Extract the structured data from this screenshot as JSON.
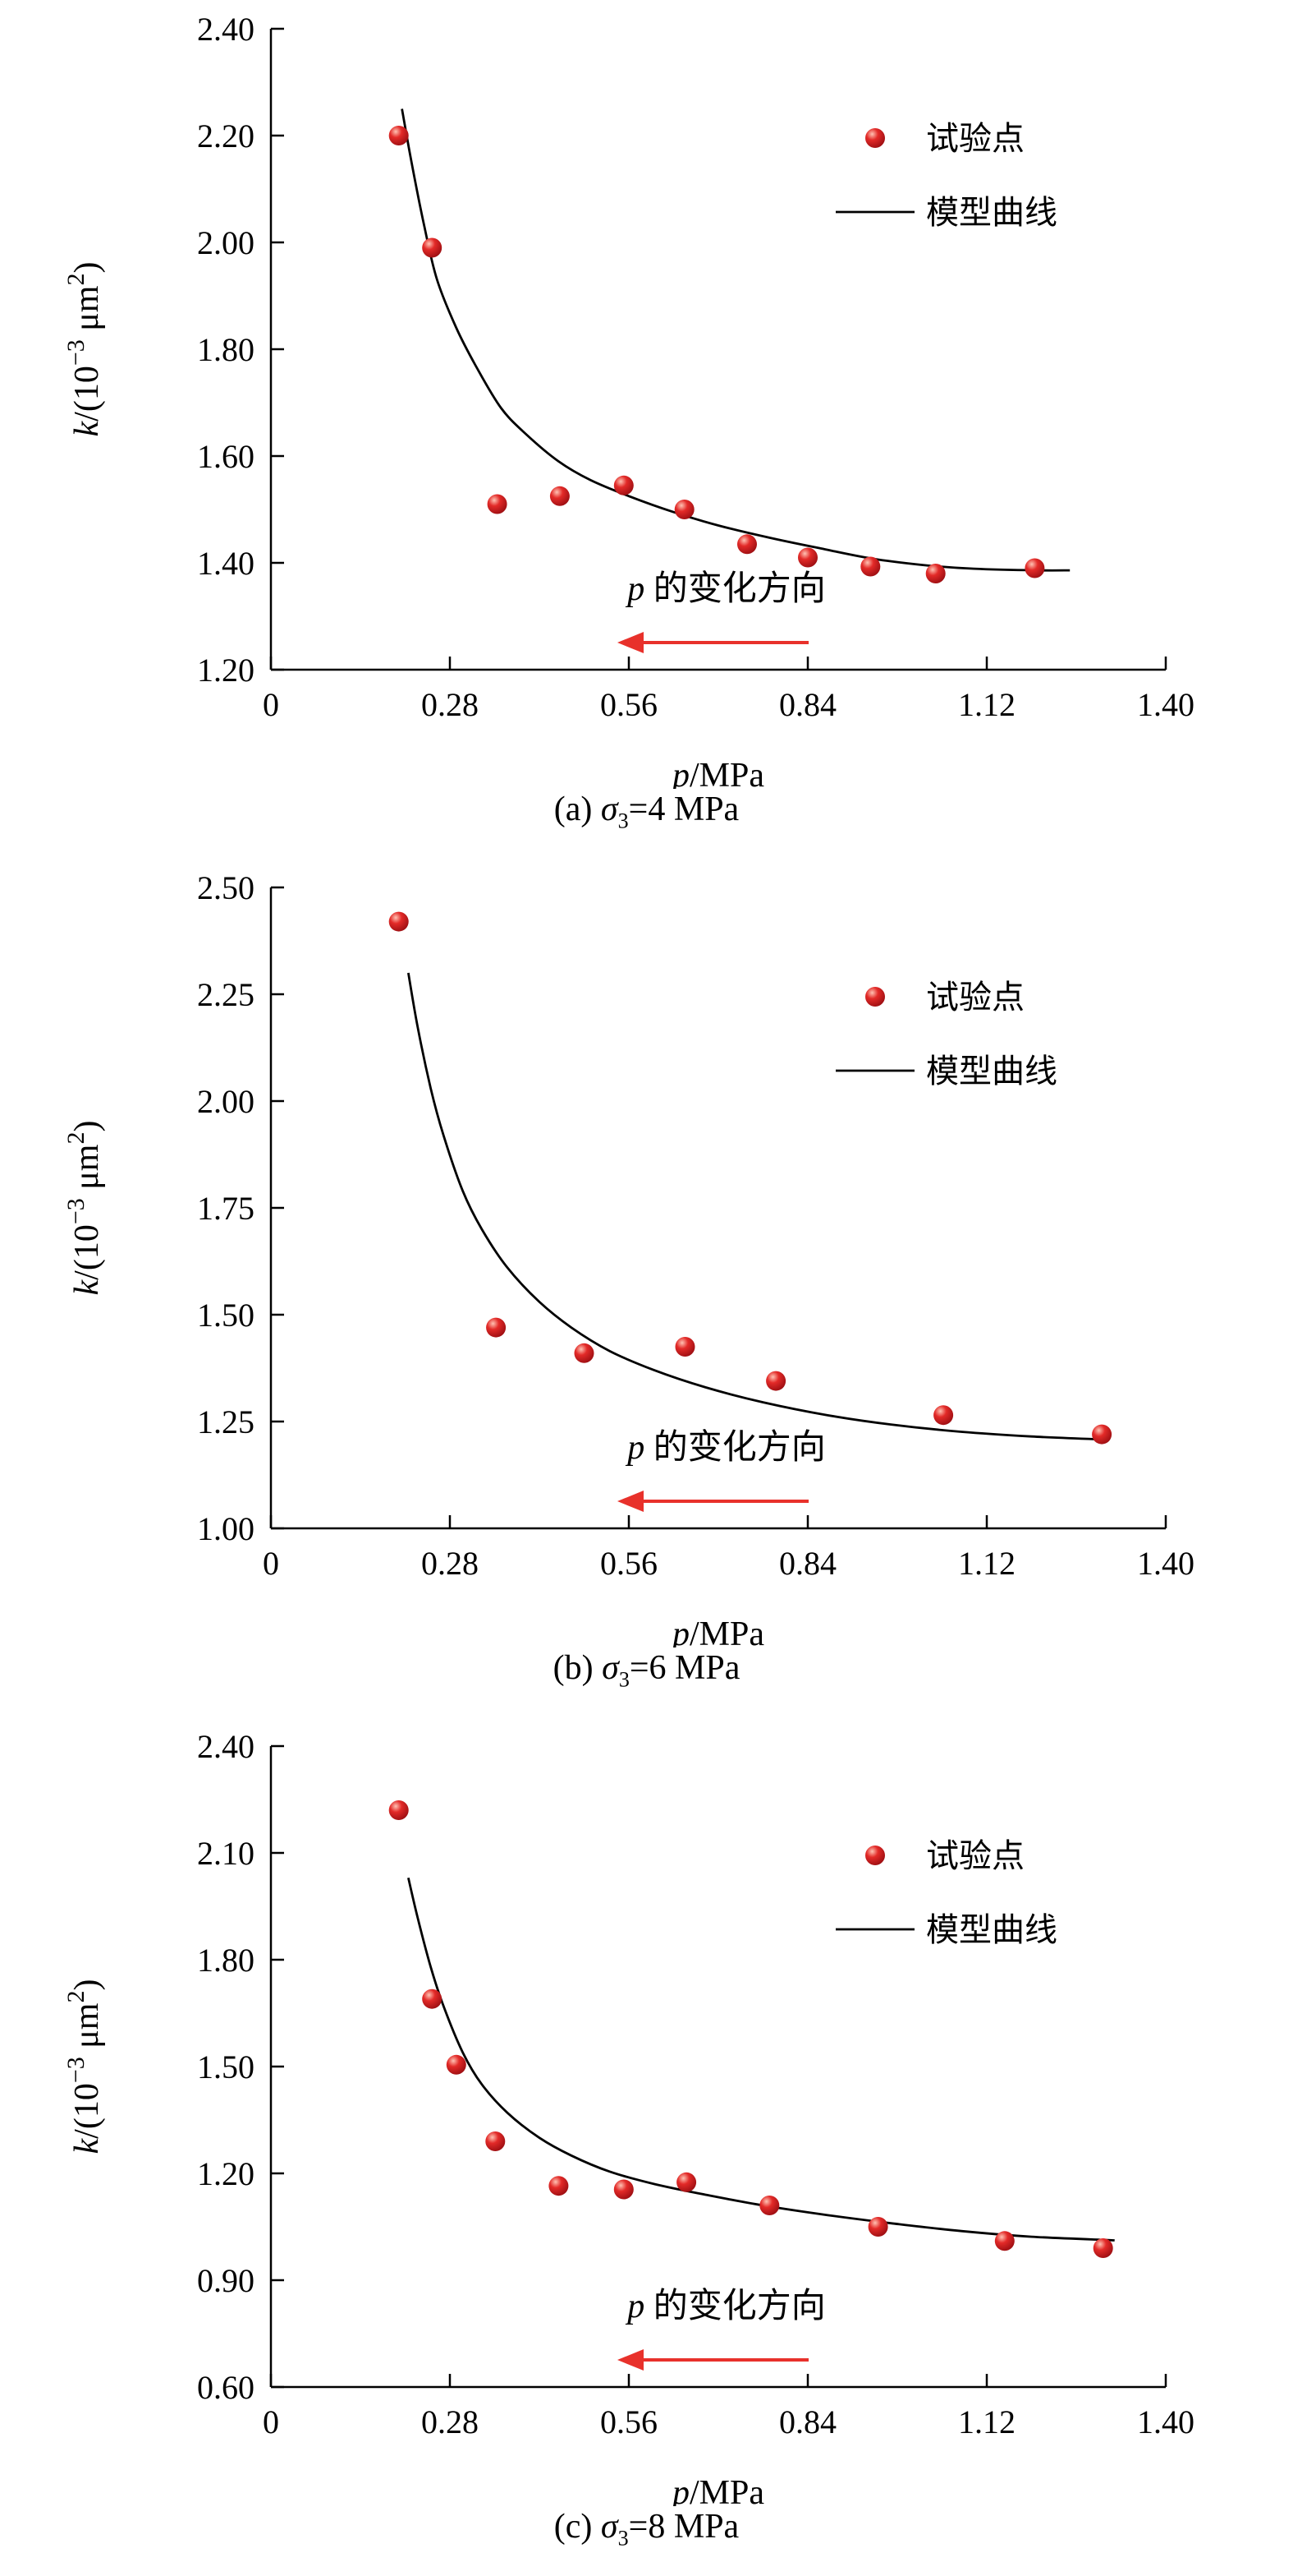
{
  "page": {
    "background": "#ffffff"
  },
  "colors": {
    "point_fill": "#e32a28",
    "point_highlight": "#ffc2b3",
    "point_edge": "#9c0e12",
    "curve": "#000000",
    "arrow": "#e8312b",
    "axis": "#000000",
    "text": "#000000"
  },
  "chart_data": [
    {
      "type": "scatter",
      "panel": "a",
      "caption_segments": [
        {
          "t": "(a) "
        },
        {
          "t": "σ",
          "i": true
        },
        {
          "t": "3",
          "sub": true
        },
        {
          "t": "=4 MPa"
        }
      ],
      "xlabel_segments": [
        {
          "t": "p",
          "i": true
        },
        {
          "t": "/MPa"
        }
      ],
      "ylabel_segments": [
        {
          "t": "k",
          "i": true
        },
        {
          "t": "/(10"
        },
        {
          "t": "−3",
          "sup": true
        },
        {
          "t": " μm"
        },
        {
          "t": "2",
          "sup": true
        },
        {
          "t": ")"
        }
      ],
      "xlim": [
        0,
        1.4
      ],
      "ylim": [
        1.2,
        2.4
      ],
      "xticks": {
        "values": [
          0,
          0.28,
          0.56,
          0.84,
          1.12,
          1.4
        ],
        "labels": [
          "0",
          "0.28",
          "0.56",
          "0.84",
          "1.12",
          "1.40"
        ]
      },
      "yticks": {
        "values": [
          1.2,
          1.4,
          1.6,
          1.8,
          2.0,
          2.2,
          2.4
        ],
        "labels": [
          "1.20",
          "1.40",
          "1.60",
          "1.80",
          "2.00",
          "2.20",
          "2.40"
        ]
      },
      "legend": {
        "items": [
          {
            "marker": "point",
            "label": "试验点"
          },
          {
            "marker": "line",
            "label": "模型曲线"
          }
        ]
      },
      "annotation": {
        "segments": [
          {
            "t": "p",
            "i": true
          },
          {
            "t": " 的变化方向"
          }
        ]
      },
      "points": [
        [
          0.2,
          2.2
        ],
        [
          0.252,
          1.99
        ],
        [
          0.354,
          1.51
        ],
        [
          0.452,
          1.525
        ],
        [
          0.552,
          1.545
        ],
        [
          0.647,
          1.5
        ],
        [
          0.745,
          1.435
        ],
        [
          0.84,
          1.41
        ],
        [
          0.938,
          1.393
        ],
        [
          1.04,
          1.38
        ],
        [
          1.195,
          1.39
        ]
      ],
      "curve": [
        [
          0.205,
          2.25
        ],
        [
          0.22,
          2.15
        ],
        [
          0.24,
          2.03
        ],
        [
          0.26,
          1.93
        ],
        [
          0.29,
          1.84
        ],
        [
          0.32,
          1.77
        ],
        [
          0.36,
          1.69
        ],
        [
          0.4,
          1.64
        ],
        [
          0.45,
          1.59
        ],
        [
          0.5,
          1.555
        ],
        [
          0.56,
          1.525
        ],
        [
          0.63,
          1.495
        ],
        [
          0.7,
          1.47
        ],
        [
          0.78,
          1.447
        ],
        [
          0.86,
          1.427
        ],
        [
          0.94,
          1.408
        ],
        [
          1.02,
          1.396
        ],
        [
          1.1,
          1.389
        ],
        [
          1.2,
          1.386
        ],
        [
          1.25,
          1.386
        ]
      ]
    },
    {
      "type": "scatter",
      "panel": "b",
      "caption_segments": [
        {
          "t": "(b) "
        },
        {
          "t": "σ",
          "i": true
        },
        {
          "t": "3",
          "sub": true
        },
        {
          "t": "=6 MPa"
        }
      ],
      "xlabel_segments": [
        {
          "t": "p",
          "i": true
        },
        {
          "t": "/MPa"
        }
      ],
      "ylabel_segments": [
        {
          "t": "k",
          "i": true
        },
        {
          "t": "/(10"
        },
        {
          "t": "−3",
          "sup": true
        },
        {
          "t": " μm"
        },
        {
          "t": "2",
          "sup": true
        },
        {
          "t": ")"
        }
      ],
      "xlim": [
        0,
        1.4
      ],
      "ylim": [
        1.0,
        2.5
      ],
      "xticks": {
        "values": [
          0,
          0.28,
          0.56,
          0.84,
          1.12,
          1.4
        ],
        "labels": [
          "0",
          "0.28",
          "0.56",
          "0.84",
          "1.12",
          "1.40"
        ]
      },
      "yticks": {
        "values": [
          1.0,
          1.25,
          1.5,
          1.75,
          2.0,
          2.25,
          2.5
        ],
        "labels": [
          "1.00",
          "1.25",
          "1.50",
          "1.75",
          "2.00",
          "2.25",
          "2.50"
        ]
      },
      "legend": {
        "items": [
          {
            "marker": "point",
            "label": "试验点"
          },
          {
            "marker": "line",
            "label": "模型曲线"
          }
        ]
      },
      "annotation": {
        "segments": [
          {
            "t": "p",
            "i": true
          },
          {
            "t": " 的变化方向"
          }
        ]
      },
      "points": [
        [
          0.2,
          2.42
        ],
        [
          0.352,
          1.47
        ],
        [
          0.49,
          1.41
        ],
        [
          0.648,
          1.425
        ],
        [
          0.79,
          1.345
        ],
        [
          1.052,
          1.265
        ],
        [
          1.3,
          1.22
        ]
      ],
      "curve": [
        [
          0.215,
          2.3
        ],
        [
          0.23,
          2.17
        ],
        [
          0.25,
          2.03
        ],
        [
          0.27,
          1.92
        ],
        [
          0.3,
          1.79
        ],
        [
          0.33,
          1.7
        ],
        [
          0.37,
          1.61
        ],
        [
          0.42,
          1.53
        ],
        [
          0.47,
          1.47
        ],
        [
          0.53,
          1.415
        ],
        [
          0.6,
          1.37
        ],
        [
          0.68,
          1.33
        ],
        [
          0.77,
          1.295
        ],
        [
          0.87,
          1.265
        ],
        [
          0.97,
          1.243
        ],
        [
          1.08,
          1.226
        ],
        [
          1.19,
          1.215
        ],
        [
          1.3,
          1.208
        ]
      ]
    },
    {
      "type": "scatter",
      "panel": "c",
      "caption_segments": [
        {
          "t": "(c) "
        },
        {
          "t": "σ",
          "i": true
        },
        {
          "t": "3",
          "sub": true
        },
        {
          "t": "=8 MPa"
        }
      ],
      "xlabel_segments": [
        {
          "t": "p",
          "i": true
        },
        {
          "t": "/MPa"
        }
      ],
      "ylabel_segments": [
        {
          "t": "k",
          "i": true
        },
        {
          "t": "/(10"
        },
        {
          "t": "−3",
          "sup": true
        },
        {
          "t": " μm"
        },
        {
          "t": "2",
          "sup": true
        },
        {
          "t": ")"
        }
      ],
      "xlim": [
        0,
        1.4
      ],
      "ylim": [
        0.6,
        2.4
      ],
      "xticks": {
        "values": [
          0,
          0.28,
          0.56,
          0.84,
          1.12,
          1.4
        ],
        "labels": [
          "0",
          "0.28",
          "0.56",
          "0.84",
          "1.12",
          "1.40"
        ]
      },
      "yticks": {
        "values": [
          0.6,
          0.9,
          1.2,
          1.5,
          1.8,
          2.1,
          2.4
        ],
        "labels": [
          "0.60",
          "0.90",
          "1.20",
          "1.50",
          "1.80",
          "2.10",
          "2.40"
        ]
      },
      "legend": {
        "items": [
          {
            "marker": "point",
            "label": "试验点"
          },
          {
            "marker": "line",
            "label": "模型曲线"
          }
        ]
      },
      "annotation": {
        "segments": [
          {
            "t": "p",
            "i": true
          },
          {
            "t": " 的变化方向"
          }
        ]
      },
      "points": [
        [
          0.2,
          2.22
        ],
        [
          0.252,
          1.69
        ],
        [
          0.29,
          1.505
        ],
        [
          0.351,
          1.29
        ],
        [
          0.45,
          1.165
        ],
        [
          0.552,
          1.155
        ],
        [
          0.65,
          1.175
        ],
        [
          0.78,
          1.11
        ],
        [
          0.95,
          1.05
        ],
        [
          1.148,
          1.01
        ],
        [
          1.302,
          0.99
        ]
      ],
      "curve": [
        [
          0.215,
          2.03
        ],
        [
          0.23,
          1.915
        ],
        [
          0.25,
          1.78
        ],
        [
          0.27,
          1.67
        ],
        [
          0.3,
          1.54
        ],
        [
          0.33,
          1.45
        ],
        [
          0.37,
          1.37
        ],
        [
          0.42,
          1.3
        ],
        [
          0.47,
          1.25
        ],
        [
          0.53,
          1.205
        ],
        [
          0.6,
          1.17
        ],
        [
          0.68,
          1.14
        ],
        [
          0.77,
          1.11
        ],
        [
          0.87,
          1.083
        ],
        [
          0.97,
          1.06
        ],
        [
          1.08,
          1.038
        ],
        [
          1.19,
          1.022
        ],
        [
          1.32,
          1.012
        ]
      ]
    }
  ]
}
